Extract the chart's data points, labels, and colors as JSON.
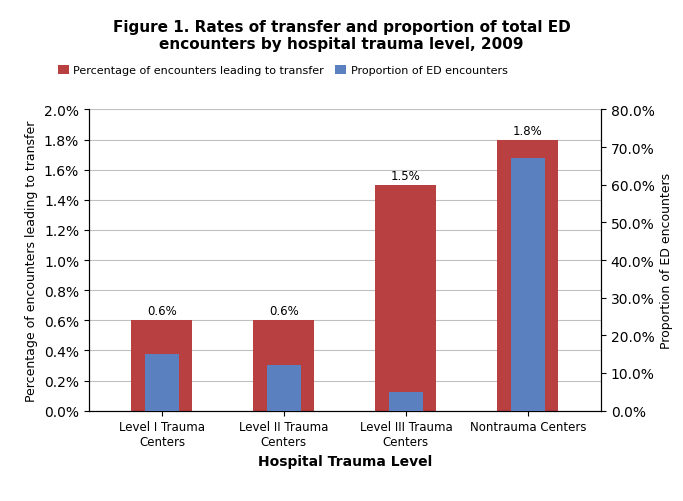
{
  "title": "Figure 1. Rates of transfer and proportion of total ED\nencounters by hospital trauma level, 2009",
  "categories": [
    "Level I Trauma\nCenters",
    "Level II Trauma\nCenters",
    "Level III Trauma\nCenters",
    "Nontrauma Centers"
  ],
  "red_values": [
    0.006,
    0.006,
    0.015,
    0.018
  ],
  "blue_values": [
    0.15,
    0.12,
    0.05,
    0.67
  ],
  "red_labels": [
    "0.6%",
    "0.6%",
    "1.5%",
    "1.8%"
  ],
  "red_color": "#B94040",
  "blue_color": "#5B80C0",
  "left_ylim": [
    0,
    0.02
  ],
  "right_ylim": [
    0,
    0.8
  ],
  "left_yticks": [
    0.0,
    0.002,
    0.004,
    0.006,
    0.008,
    0.01,
    0.012,
    0.014,
    0.016,
    0.018,
    0.02
  ],
  "right_yticks": [
    0.0,
    0.1,
    0.2,
    0.3,
    0.4,
    0.5,
    0.6,
    0.7,
    0.8
  ],
  "xlabel": "Hospital Trauma Level",
  "ylabel_left": "Percentage of encounters leading to transfer",
  "ylabel_right": "Proportion of ED encounters",
  "legend_red": "Percentage of encounters leading to transfer",
  "legend_blue": "Proportion of ED encounters",
  "bar_width": 0.5,
  "background_color": "#FFFFFF",
  "grid_color": "#C0C0C0"
}
